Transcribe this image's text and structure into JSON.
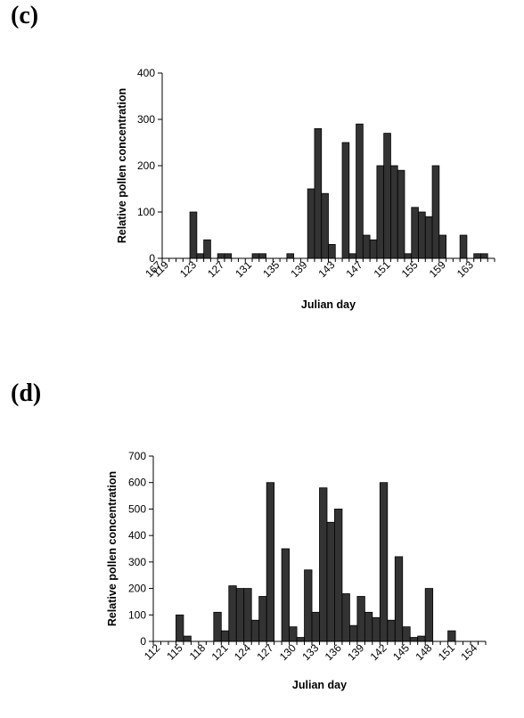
{
  "panels": {
    "c": "(c)",
    "d": "(d)"
  },
  "chart_data": [
    {
      "id": "c",
      "type": "bar",
      "xlabel": "Julian day",
      "ylabel": "Relative pollen concentration",
      "ylim": [
        0,
        400
      ],
      "yticks": [
        0,
        100,
        200,
        300,
        400
      ],
      "xticks": [
        119,
        123,
        127,
        131,
        135,
        139,
        143,
        147,
        151,
        155,
        159,
        163,
        167
      ],
      "bar_color": "#333333",
      "x": [
        119,
        120,
        121,
        122,
        123,
        124,
        125,
        126,
        127,
        128,
        129,
        130,
        131,
        132,
        133,
        134,
        135,
        136,
        137,
        138,
        139,
        140,
        141,
        142,
        143,
        144,
        145,
        146,
        147,
        148,
        149,
        150,
        151,
        152,
        153,
        154,
        155,
        156,
        157,
        158,
        159,
        160,
        161,
        162,
        163,
        164,
        165,
        166
      ],
      "values": [
        0,
        0,
        0,
        0,
        100,
        10,
        40,
        0,
        10,
        10,
        0,
        0,
        0,
        10,
        10,
        0,
        0,
        0,
        10,
        0,
        0,
        150,
        280,
        140,
        30,
        0,
        250,
        10,
        290,
        50,
        40,
        200,
        270,
        200,
        190,
        10,
        110,
        100,
        90,
        200,
        50,
        0,
        0,
        50,
        0,
        10,
        10,
        0
      ]
    },
    {
      "id": "d",
      "type": "bar",
      "xlabel": "Julian day",
      "ylabel": "Relative pollen concentration",
      "ylim": [
        0,
        700
      ],
      "yticks": [
        0,
        100,
        200,
        300,
        400,
        500,
        600,
        700
      ],
      "xticks": [
        112,
        115,
        118,
        121,
        124,
        127,
        130,
        133,
        136,
        139,
        142,
        145,
        148,
        151,
        154
      ],
      "bar_color": "#333333",
      "x": [
        112,
        113,
        114,
        115,
        116,
        117,
        118,
        119,
        120,
        121,
        122,
        123,
        124,
        125,
        126,
        127,
        128,
        129,
        130,
        131,
        132,
        133,
        134,
        135,
        136,
        137,
        138,
        139,
        140,
        141,
        142,
        143,
        144,
        145,
        146,
        147,
        148,
        149,
        150,
        151,
        152,
        153,
        154,
        155
      ],
      "values": [
        0,
        0,
        0,
        100,
        20,
        0,
        0,
        0,
        110,
        40,
        210,
        200,
        200,
        80,
        170,
        600,
        0,
        350,
        55,
        15,
        270,
        110,
        580,
        450,
        500,
        180,
        60,
        170,
        110,
        90,
        600,
        80,
        320,
        55,
        15,
        20,
        200,
        0,
        0,
        40,
        0,
        0,
        0,
        0
      ]
    }
  ]
}
